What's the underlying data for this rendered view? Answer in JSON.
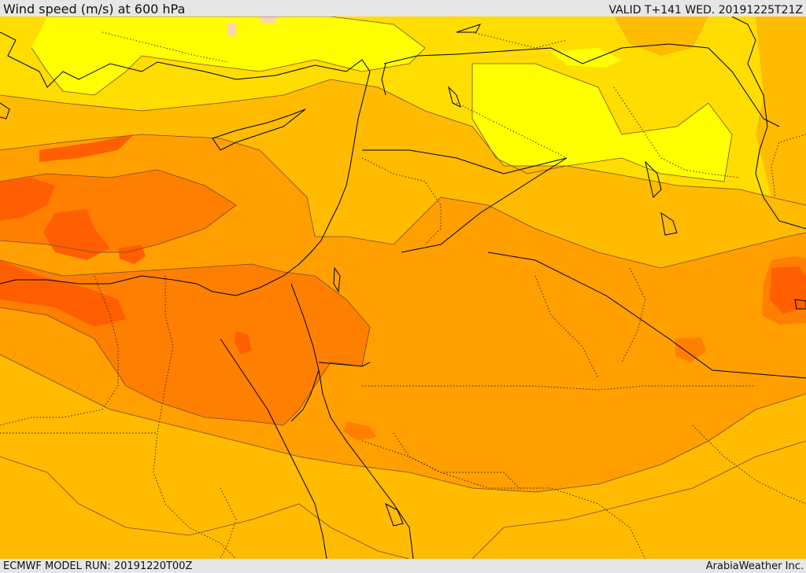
{
  "header": {
    "title": "Wind speed (m/s) at 600 hPa",
    "valid": "VALID T+141 WED. 20191225T21Z"
  },
  "footer": {
    "model_run": "ECMWF MODEL RUN: 20191220T00Z",
    "credit": "ArabiaWeather Inc."
  },
  "colors": {
    "light_yellow": "#ffff00",
    "yellow": "#ffdd00",
    "light_orange": "#ffbb00",
    "orange": "#ff9f00",
    "dark_orange": "#ff7f00",
    "red_orange": "#ff5f00",
    "pale_pink": "#ffd2b4",
    "border": "#000000",
    "contour": "#7a4a2a"
  }
}
